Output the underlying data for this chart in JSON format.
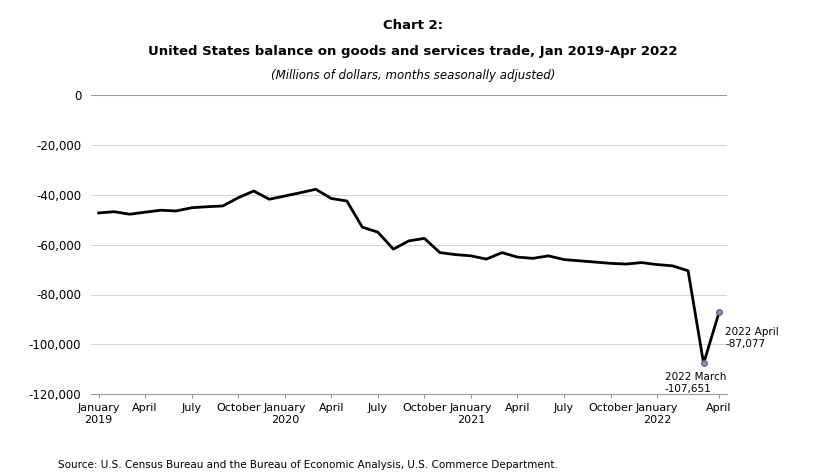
{
  "title_line1": "Chart 2:",
  "title_line2": "United States balance on goods and services trade, Jan 2019-Apr 2022",
  "title_line3": "(Millions of dollars, months seasonally adjusted)",
  "source": "Source: U.S. Census Bureau and the Bureau of Economic Analysis, U.S. Commerce Department.",
  "ylim": [
    -120000,
    0
  ],
  "yticks": [
    0,
    -20000,
    -40000,
    -60000,
    -80000,
    -100000,
    -120000
  ],
  "line_color": "#000000",
  "line_width": 2.0,
  "background_color": "#ffffff",
  "march_value": -107651,
  "april_value": -87077,
  "march_idx": 39,
  "april_idx": 40,
  "values": [
    -47300,
    -46800,
    -47800,
    -47000,
    -46200,
    -46500,
    -45200,
    -44800,
    -44500,
    -41200,
    -38500,
    -41800,
    -40500,
    -39200,
    -37800,
    -41500,
    -42500,
    -53000,
    -55000,
    -61800,
    -58500,
    -57500,
    -63200,
    -64000,
    -64500,
    -65800,
    -63200,
    -65000,
    -65500,
    -64500,
    -66000,
    -66500,
    -67000,
    -67500,
    -67800,
    -67200,
    -68000,
    -68500,
    -70500,
    -107651,
    -87077
  ],
  "xtick_positions": [
    0,
    3,
    6,
    9,
    12,
    15,
    18,
    21,
    24,
    27,
    30,
    33,
    36,
    40
  ],
  "xtick_labels": [
    "January\n2019",
    "April",
    "July",
    "October",
    "January\n2020",
    "April",
    "July",
    "October",
    "January\n2021",
    "April",
    "July",
    "October",
    "January\n2022",
    "April"
  ]
}
